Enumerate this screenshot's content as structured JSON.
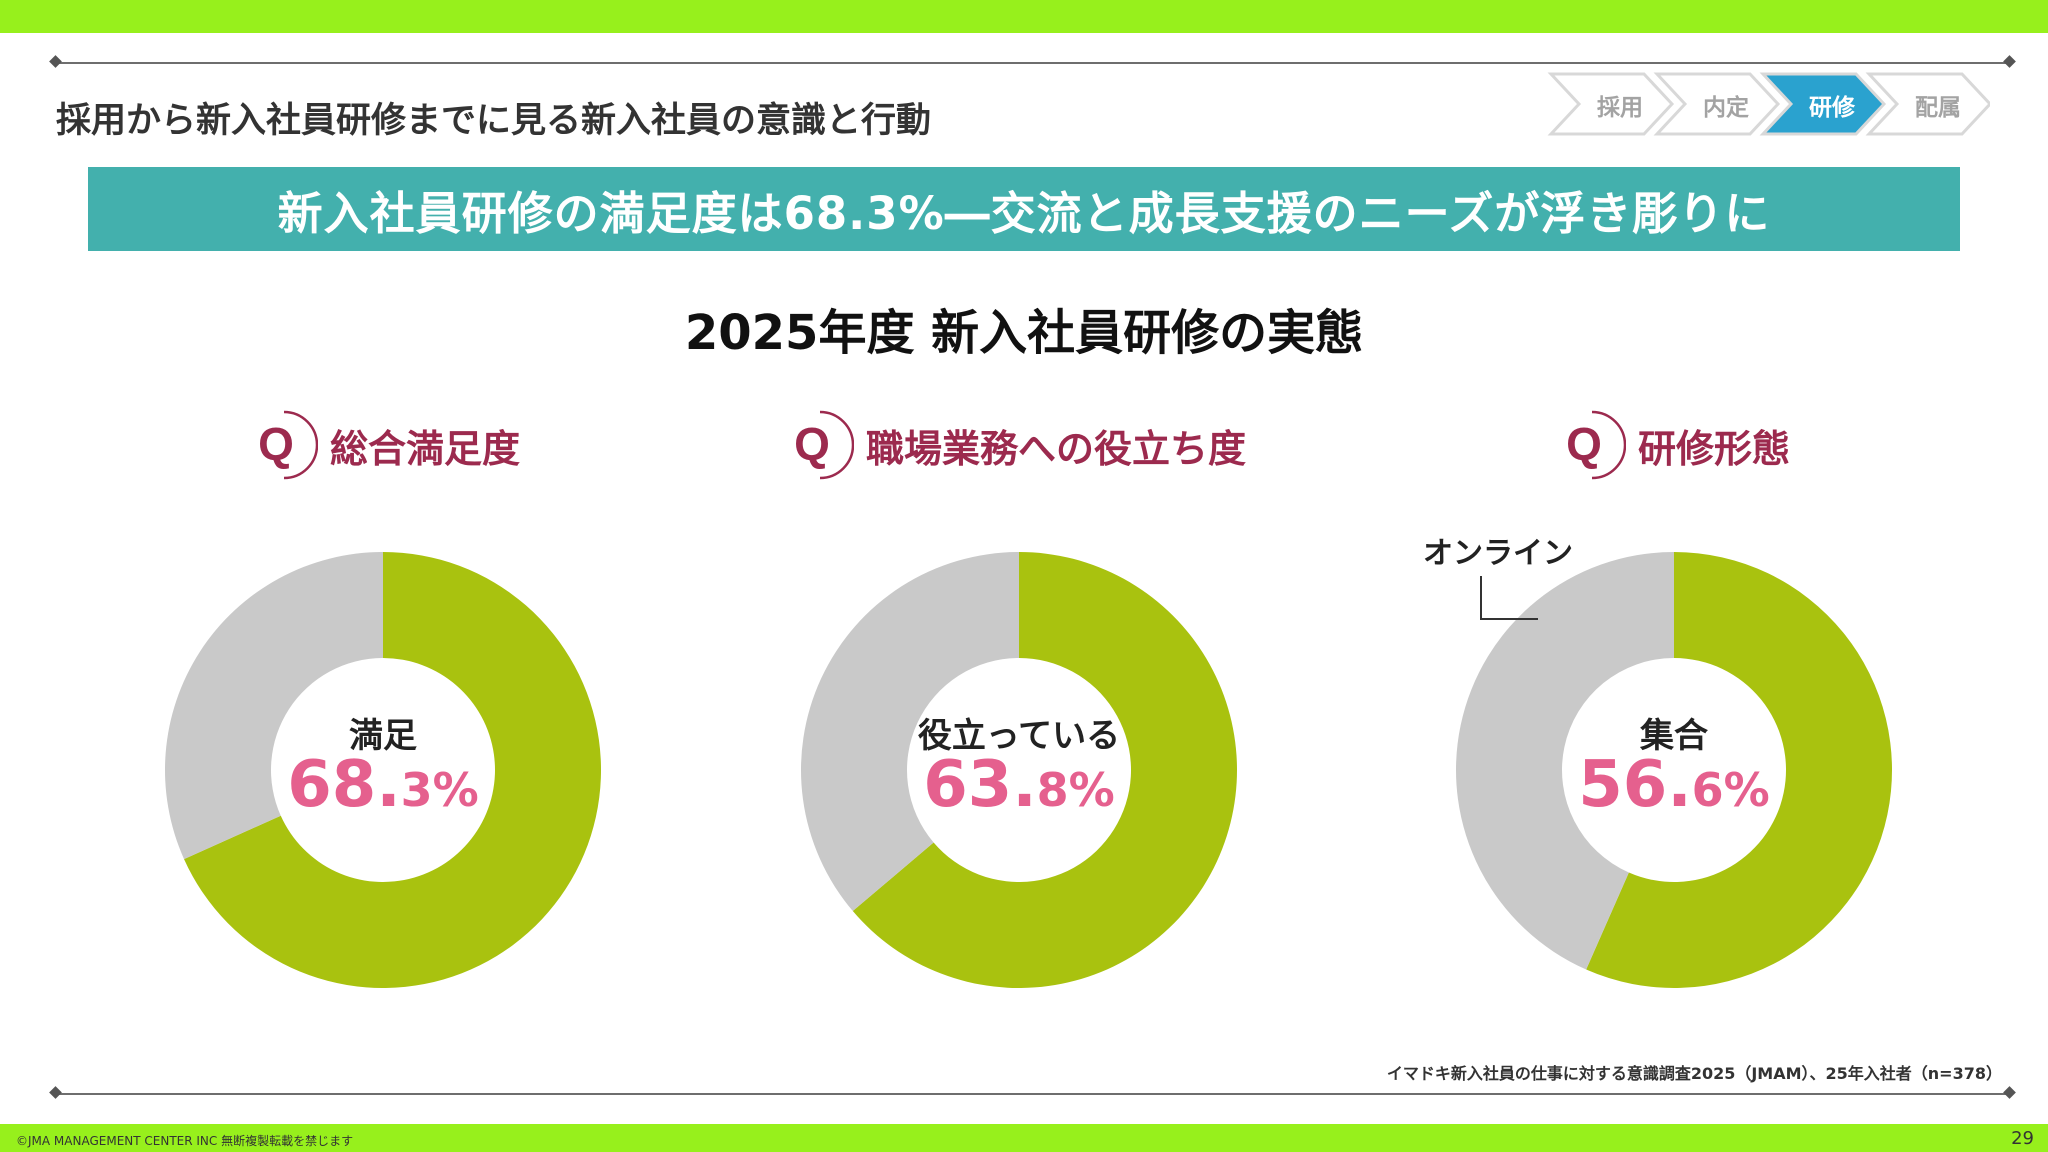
{
  "header": {
    "title": "採用から新入社員研修までに見る新入社員の意識と行動",
    "steps": [
      {
        "label": "採用",
        "active": false
      },
      {
        "label": "内定",
        "active": false
      },
      {
        "label": "研修",
        "active": true
      },
      {
        "label": "配属",
        "active": false
      }
    ]
  },
  "banner": {
    "text": "新入社員研修の満足度は68.3%―交流と成長支援のニーズが浮き彫りに"
  },
  "section_title": "2025年度 新入社員研修の実態",
  "colors": {
    "accent_green": "#a9c20f",
    "remainder_gray": "#c9c9c9",
    "value_pink": "#e5608e",
    "question_maroon": "#9c2a4e",
    "banner_teal": "#43b0ad",
    "brand_green": "#97f01c"
  },
  "questions": [
    {
      "mark": "Q",
      "text": "総合満足度"
    },
    {
      "mark": "Q",
      "text": "職場業務への役立ち度"
    },
    {
      "mark": "Q",
      "text": "研修形態"
    }
  ],
  "chart_data": [
    {
      "type": "pie",
      "title": "総合満足度",
      "center_label": "満足",
      "value_int": "68.",
      "value_dec": "3%",
      "slices": [
        {
          "name": "満足",
          "value": 68.3,
          "color": "#a9c20f"
        },
        {
          "name": "",
          "value": 31.7,
          "color": "#c9c9c9"
        }
      ]
    },
    {
      "type": "pie",
      "title": "職場業務への役立ち度",
      "center_label": "役立っている",
      "value_int": "63.",
      "value_dec": "8%",
      "slices": [
        {
          "name": "役立っている",
          "value": 63.8,
          "color": "#a9c20f"
        },
        {
          "name": "",
          "value": 36.2,
          "color": "#c9c9c9"
        }
      ]
    },
    {
      "type": "pie",
      "title": "研修形態",
      "center_label": "集合",
      "value_int": "56.",
      "value_dec": "6%",
      "slices": [
        {
          "name": "集合",
          "value": 56.6,
          "color": "#a9c20f"
        },
        {
          "name": "オンライン",
          "value": 43.4,
          "color": "#c9c9c9"
        }
      ]
    }
  ],
  "callout": {
    "label": "オンライン"
  },
  "footer": {
    "source": "イマドキ新入社員の仕事に対する意識調査2025（JMAM）、25年入社者（n=378）",
    "copyright": "©JMA MANAGEMENT CENTER INC  無断複製転載を禁じます",
    "page_number": "29"
  }
}
